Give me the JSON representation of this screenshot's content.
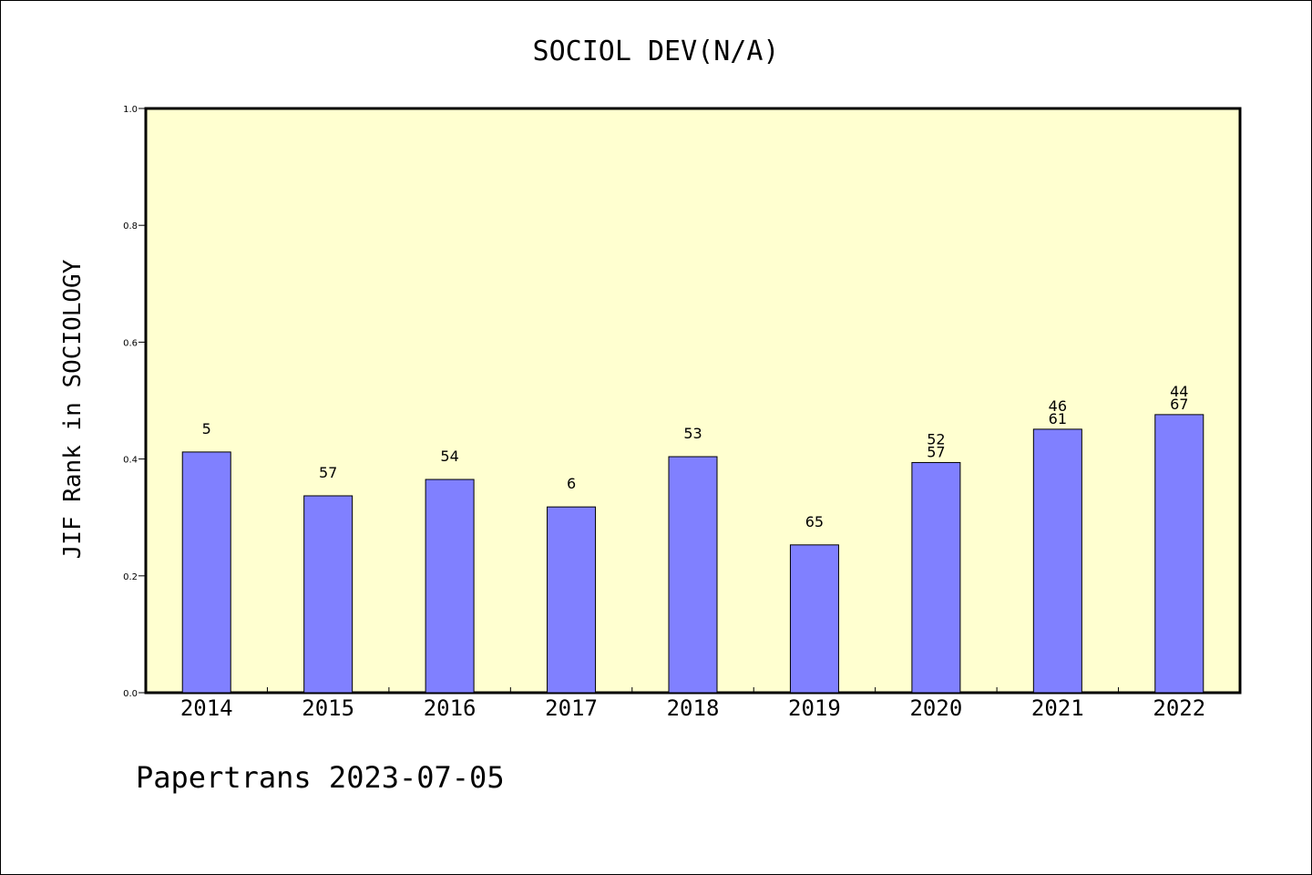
{
  "chart_data": {
    "type": "bar",
    "title": "SOCIOL DEV(N/A)",
    "xlabel": "",
    "ylabel": "JIF Rank in SOCIOLOGY",
    "ylim": [
      0,
      1.0
    ],
    "yticks": [
      "0.0",
      "0.2",
      "0.4",
      "0.6",
      "0.8",
      "1.0"
    ],
    "categories": [
      "2014",
      "2015",
      "2016",
      "2017",
      "2018",
      "2019",
      "2020",
      "2021",
      "2022"
    ],
    "values": [
      0.412,
      0.337,
      0.365,
      0.318,
      0.404,
      0.253,
      0.394,
      0.451,
      0.476
    ],
    "bar_labels": [
      [
        "5"
      ],
      [
        "57"
      ],
      [
        "54"
      ],
      [
        "6"
      ],
      [
        "53"
      ],
      [
        "65"
      ],
      [
        "52",
        "57"
      ],
      [
        "46",
        "61"
      ],
      [
        "44",
        "67"
      ]
    ],
    "colors": {
      "plot_bg": "#ffffd0",
      "bar_fill": "#8080ff",
      "bar_stroke": "#000000"
    },
    "grid": false,
    "legend": "none"
  },
  "footer": {
    "text": "Papertrans 2023-07-05"
  }
}
